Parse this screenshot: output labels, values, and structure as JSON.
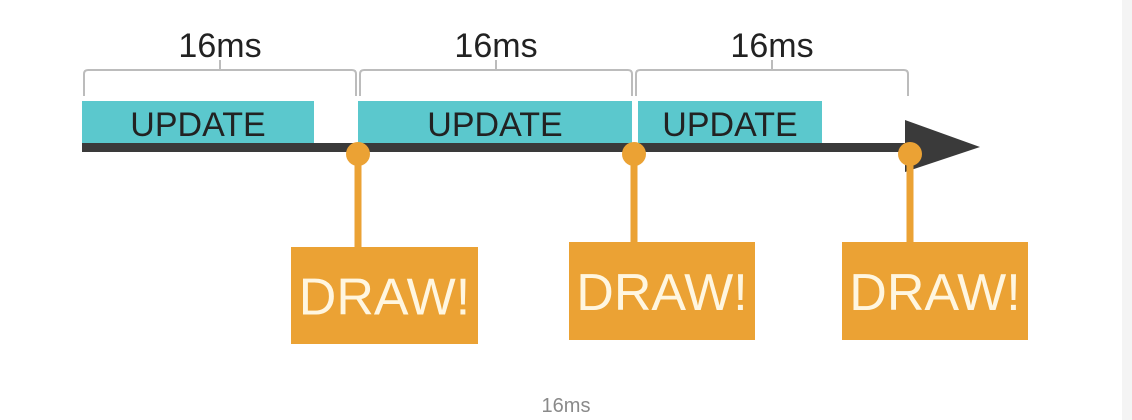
{
  "diagram": {
    "frames": [
      {
        "duration_label": "16ms",
        "update_label": "UPDATE",
        "draw_label": "DRAW!"
      },
      {
        "duration_label": "16ms",
        "update_label": "UPDATE",
        "draw_label": "DRAW!"
      },
      {
        "duration_label": "16ms",
        "update_label": "UPDATE",
        "draw_label": "DRAW!"
      }
    ],
    "colors": {
      "update_fill": "#5bc8cd",
      "draw_fill": "#eba234",
      "draw_text": "#fff6e0",
      "timeline": "#3a3a3a",
      "bracket": "#bcbcbc",
      "label_text": "#222222"
    }
  },
  "caption": "16ms"
}
